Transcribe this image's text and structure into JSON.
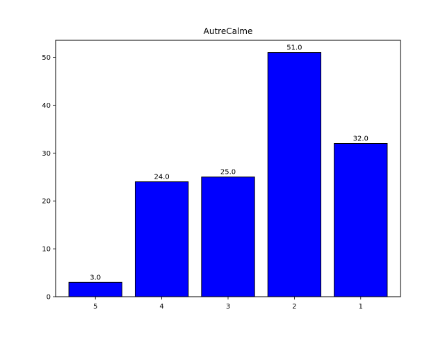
{
  "chart_data": {
    "type": "bar",
    "title": "AutreCalme",
    "xlabel": "",
    "ylabel": "",
    "categories": [
      "5",
      "4",
      "3",
      "2",
      "1"
    ],
    "values": [
      3.0,
      24.0,
      25.0,
      51.0,
      32.0
    ],
    "data_labels": [
      "3.0",
      "24.0",
      "25.0",
      "51.0",
      "32.0"
    ],
    "ylim": [
      0,
      53.55
    ],
    "yticks": [
      0,
      10,
      20,
      30,
      40,
      50
    ],
    "ytick_labels": [
      "0",
      "10",
      "20",
      "30",
      "40",
      "50"
    ],
    "grid": false,
    "legend": "none",
    "bar_color": "#0000ff",
    "edge_color": "#000000"
  }
}
